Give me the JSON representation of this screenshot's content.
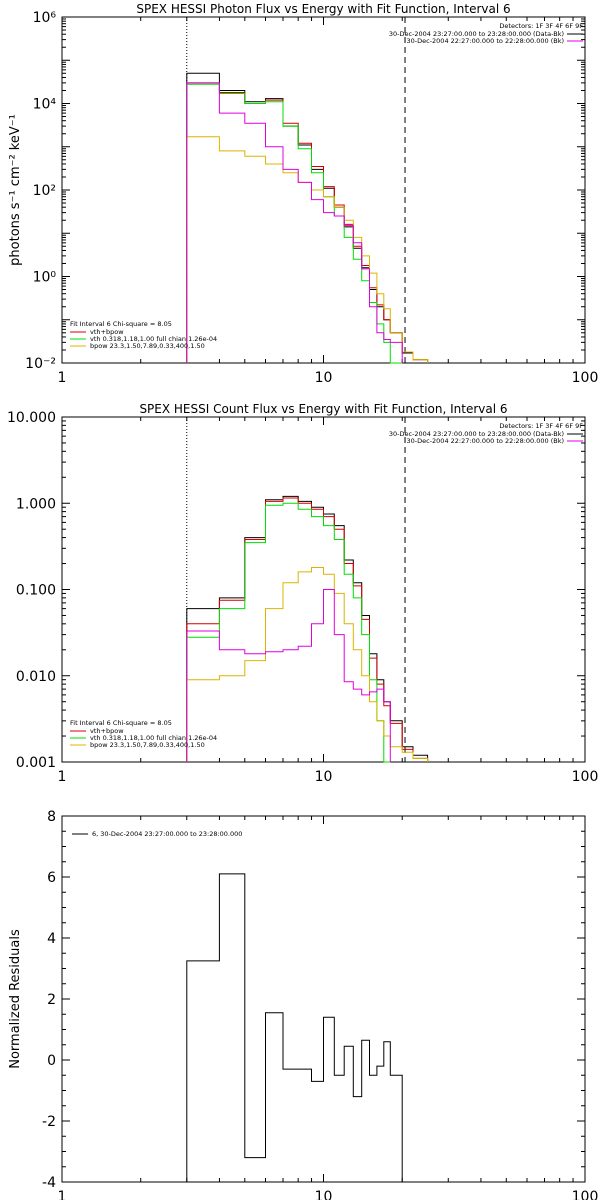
{
  "colors": {
    "data": "#000000",
    "total": "#d40000",
    "vth": "#00dd00",
    "bpow": "#dcb400",
    "bk": "#e000e0"
  },
  "chart_data": [
    {
      "type": "line",
      "title": "SPEX HESSI Photon Flux vs Energy with Fit Function, Interval 6",
      "ylabel": "photons s⁻¹ cm⁻² keV⁻¹",
      "xlabel": "",
      "xscale": "log",
      "yscale": "log",
      "xlim": [
        1,
        100
      ],
      "ylim": [
        0.01,
        1000000
      ],
      "x_ticks": [
        {
          "v": 1,
          "label": "1"
        },
        {
          "v": 10,
          "label": "10"
        },
        {
          "v": 100,
          "label": "100"
        }
      ],
      "y_ticks": [
        {
          "v": 0.01,
          "label": "10⁻²"
        },
        {
          "v": 1,
          "label": "10⁰"
        },
        {
          "v": 100,
          "label": "10²"
        },
        {
          "v": 10000,
          "label": "10⁴"
        },
        {
          "v": 1000000,
          "label": "10⁶"
        }
      ],
      "vlines": [
        {
          "x": 3,
          "style": "dotted"
        },
        {
          "x": 20.5,
          "style": "dashed"
        }
      ],
      "top_legend": {
        "header": "Detectors: 1F 3F 4F 6F 9F",
        "entries": [
          {
            "label": "30-Dec-2004 23:27:00.000 to 23:28:00.000 (Data-Bk)",
            "color_key": "data"
          },
          {
            "label": "30-Dec-2004 22:27:00.000 to 22:28:00.000 (Bk)",
            "color_key": "bk"
          }
        ]
      },
      "fit_legend": {
        "header": "Fit Interval 6   Chi-square = 8.05",
        "entries": [
          {
            "label": "vth+bpow",
            "color_key": "total"
          },
          {
            "label": "vth 0.318,1.18,1.00  full chian 1.26e-04",
            "color_key": "vth"
          },
          {
            "label": "bpow 23.3,1.50,7.89,0.33,400,1.50",
            "color_key": "bpow"
          }
        ]
      },
      "edges": [
        3,
        4,
        5,
        6,
        7,
        8,
        9,
        10,
        11,
        12,
        13,
        14,
        15,
        16,
        17,
        18,
        20,
        22,
        25
      ],
      "series": [
        {
          "key": "data",
          "values": [
            50000,
            20000,
            11000,
            13000,
            3000,
            1100,
            300,
            110,
            40,
            14,
            4.5,
            1.6,
            0.5,
            0.2,
            0.1,
            0.05,
            0.017,
            0.012
          ]
        },
        {
          "key": "total",
          "values": [
            30000,
            18000,
            10000,
            12000,
            3500,
            1200,
            350,
            120,
            45,
            16,
            5,
            1.8,
            0.55,
            0.22,
            0.1,
            0.05,
            0.018,
            0.012
          ]
        },
        {
          "key": "vth",
          "values": [
            28000,
            17000,
            10000,
            11000,
            3000,
            900,
            250,
            70,
            25,
            8,
            2.5,
            0.8,
            0.25,
            0.08,
            0.03,
            0.01
          ]
        },
        {
          "key": "bpow",
          "values": [
            1700,
            800,
            600,
            400,
            250,
            150,
            100,
            70,
            40,
            20,
            8,
            3,
            1.2,
            0.4,
            0.18,
            0.05,
            0.018,
            0.012
          ]
        },
        {
          "key": "bk",
          "values": [
            30000,
            6000,
            3500,
            1000,
            300,
            150,
            60,
            30,
            25,
            15,
            6,
            1.5,
            0.2,
            0.05,
            0.035,
            0.03
          ]
        }
      ]
    },
    {
      "type": "line",
      "title": "SPEX HESSI Count Flux vs Energy with Fit Function, Interval 6",
      "ylabel": "",
      "xlabel": "",
      "xscale": "log",
      "yscale": "log",
      "xlim": [
        1,
        100
      ],
      "ylim": [
        0.001,
        10
      ],
      "x_ticks": [
        {
          "v": 1,
          "label": "1"
        },
        {
          "v": 10,
          "label": "10"
        },
        {
          "v": 100,
          "label": "100"
        }
      ],
      "y_ticks": [
        {
          "v": 0.001,
          "label": "0.001"
        },
        {
          "v": 0.01,
          "label": "0.010"
        },
        {
          "v": 0.1,
          "label": "0.100"
        },
        {
          "v": 1,
          "label": "1.000"
        },
        {
          "v": 10,
          "label": "10.000"
        }
      ],
      "vlines": [
        {
          "x": 3,
          "style": "dotted"
        },
        {
          "x": 20.5,
          "style": "dashed"
        }
      ],
      "top_legend": {
        "header": "Detectors: 1F 3F 4F 6F 9F",
        "entries": [
          {
            "label": "30-Dec-2004 23:27:00.000 to 23:28:00.000 (Data-Bk)",
            "color_key": "data"
          },
          {
            "label": "30-Dec-2004 22:27:00.000 to 22:28:00.000 (Bk)",
            "color_key": "bk"
          }
        ]
      },
      "fit_legend": {
        "header": "Fit Interval 6   Chi-square = 8.05",
        "entries": [
          {
            "label": "vth+bpow",
            "color_key": "total"
          },
          {
            "label": "vth 0.318,1.18,1.00  full chian 1.26e-04",
            "color_key": "vth"
          },
          {
            "label": "bpow 23.3,1.50,7.89,0.33,400,1.50",
            "color_key": "bpow"
          }
        ]
      },
      "edges": [
        3,
        4,
        5,
        6,
        7,
        8,
        9,
        10,
        11,
        12,
        13,
        14,
        15,
        16,
        17,
        18,
        20,
        22,
        25
      ],
      "series": [
        {
          "key": "data",
          "values": [
            0.06,
            0.08,
            0.4,
            1.1,
            1.2,
            1.05,
            0.9,
            0.75,
            0.55,
            0.22,
            0.12,
            0.05,
            0.018,
            0.009,
            0.005,
            0.003,
            0.0015,
            0.0012
          ]
        },
        {
          "key": "total",
          "values": [
            0.04,
            0.075,
            0.38,
            1.05,
            1.15,
            1.0,
            0.85,
            0.7,
            0.5,
            0.2,
            0.11,
            0.045,
            0.016,
            0.008,
            0.0045,
            0.0028,
            0.0014,
            0.0011
          ]
        },
        {
          "key": "vth",
          "values": [
            0.028,
            0.06,
            0.35,
            0.95,
            1.0,
            0.85,
            0.7,
            0.55,
            0.38,
            0.15,
            0.08,
            0.03,
            0.009,
            0.003,
            0.001
          ]
        },
        {
          "key": "bpow",
          "values": [
            0.009,
            0.01,
            0.015,
            0.06,
            0.12,
            0.16,
            0.18,
            0.15,
            0.09,
            0.04,
            0.02,
            0.01,
            0.005,
            0.003,
            0.002,
            0.0015,
            0.0013,
            0.0011
          ]
        },
        {
          "key": "bk",
          "values": [
            0.033,
            0.02,
            0.018,
            0.019,
            0.02,
            0.022,
            0.04,
            0.1,
            0.03,
            0.0085,
            0.007,
            0.006,
            0.0065,
            0.007,
            0.005
          ]
        }
      ]
    },
    {
      "type": "line",
      "title": "",
      "ylabel": "Normalized Residuals",
      "xlabel": "",
      "xscale": "log",
      "yscale": "linear",
      "xlim": [
        1,
        100
      ],
      "ylim": [
        -4,
        8
      ],
      "x_ticks": [
        {
          "v": 1,
          "label": "1"
        },
        {
          "v": 10,
          "label": "10"
        },
        {
          "v": 100,
          "label": "100"
        }
      ],
      "y_ticks": [
        {
          "v": -4,
          "label": "-4"
        },
        {
          "v": -2,
          "label": "-2"
        },
        {
          "v": 0,
          "label": "0"
        },
        {
          "v": 2,
          "label": "2"
        },
        {
          "v": 4,
          "label": "4"
        },
        {
          "v": 6,
          "label": "6"
        },
        {
          "v": 8,
          "label": "8"
        }
      ],
      "legend": {
        "entries": [
          {
            "label": "6, 30-Dec-2004 23:27:00.000 to 23:28:00.000",
            "color_key": "data"
          }
        ]
      },
      "edges": [
        3,
        4,
        5,
        6,
        7,
        8,
        9,
        10,
        11,
        12,
        13,
        14,
        15,
        16,
        17,
        18,
        20
      ],
      "series": [
        {
          "key": "data",
          "values": [
            3.25,
            6.1,
            -3.2,
            1.55,
            -0.3,
            -0.3,
            -0.7,
            1.4,
            -0.5,
            0.45,
            -1.2,
            0.65,
            -0.5,
            -0.2,
            0.6,
            -0.5
          ]
        }
      ]
    }
  ]
}
